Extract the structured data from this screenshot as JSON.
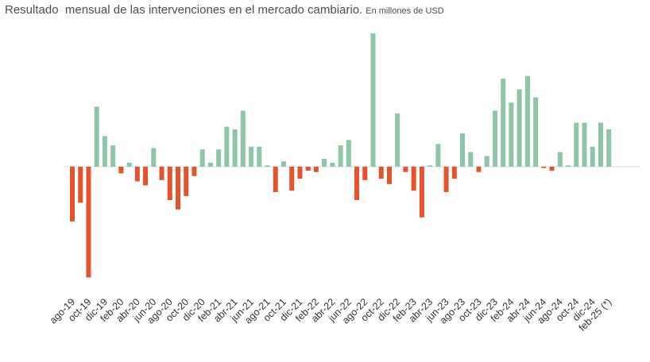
{
  "chart_data": {
    "type": "bar",
    "title": "Resultado  mensual de las intervenciones en el mercado cambiario.",
    "subtitle": "En millones de USD",
    "xlabel": "",
    "ylabel": "",
    "grid": false,
    "y_axis_labels_shown": false,
    "ylim": [
      -100,
      100
    ],
    "colors": {
      "positive": "#8dc5a6",
      "negative": "#e5532d",
      "zero_line": "#d9d9d9"
    },
    "categories": [
      "ago-19",
      "sep-19",
      "oct-19",
      "nov-19",
      "dic-19",
      "ene-20",
      "feb-20",
      "mar-20",
      "abr-20",
      "may-20",
      "jun-20",
      "jul-20",
      "ago-20",
      "sep-20",
      "oct-20",
      "nov-20",
      "dic-20",
      "ene-21",
      "feb-21",
      "mar-21",
      "abr-21",
      "may-21",
      "jun-21",
      "jul-21",
      "ago-21",
      "sep-21",
      "oct-21",
      "nov-21",
      "dic-21",
      "ene-22",
      "feb-22",
      "mar-22",
      "abr-22",
      "may-22",
      "jun-22",
      "jul-22",
      "ago-22",
      "sep-22",
      "oct-22",
      "nov-22",
      "dic-22",
      "ene-23",
      "feb-23",
      "mar-23",
      "abr-23",
      "may-23",
      "jun-23",
      "jul-23",
      "ago-23",
      "sep-23",
      "oct-23",
      "nov-23",
      "dic-23",
      "ene-24",
      "feb-24",
      "mar-24",
      "abr-24",
      "may-24",
      "jun-24",
      "jul-24",
      "ago-24",
      "sep-24",
      "oct-24",
      "nov-24",
      "dic-24",
      "ene-25",
      "feb-25 (*)"
    ],
    "shown_tick_labels": [
      "ago-19",
      "oct-19",
      "dic-19",
      "feb-20",
      "abr-20",
      "jun-20",
      "ago-20",
      "oct-20",
      "dic-20",
      "feb-21",
      "abr-21",
      "jun-21",
      "ago-21",
      "oct-21",
      "dic-21",
      "feb-22",
      "abr-22",
      "jun-22",
      "ago-22",
      "oct-22",
      "dic-22",
      "feb-23",
      "abr-23",
      "jun-23",
      "ago-23",
      "oct-23",
      "dic-23",
      "feb-24",
      "abr-24",
      "jun-24",
      "ago-24",
      "oct-24",
      "dic-24",
      "feb-25 (*)"
    ],
    "values": [
      -41,
      -27,
      -83,
      45,
      23,
      16,
      -5,
      3,
      -11,
      -14,
      14,
      -10,
      -25,
      -32,
      -22,
      -7,
      13,
      3,
      13,
      30,
      28,
      42,
      15,
      15,
      1,
      -19,
      4,
      -18,
      -9,
      -3,
      -4,
      6,
      3,
      16,
      20,
      -25,
      -10,
      100,
      -9,
      -13,
      40,
      -4,
      -18,
      -38,
      1,
      17,
      -19,
      -9,
      25,
      11,
      -4,
      8,
      42,
      66,
      48,
      58,
      68,
      52,
      -1,
      -3,
      11,
      1,
      33,
      33,
      15,
      33,
      28
    ]
  }
}
